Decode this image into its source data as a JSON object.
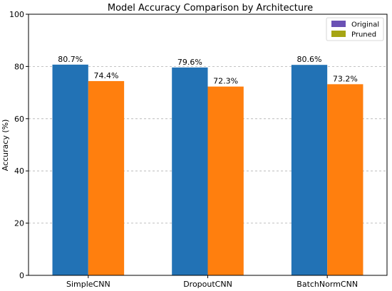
{
  "chart_data": {
    "type": "bar",
    "title": "Model Accuracy Comparison by Architecture",
    "xlabel": "",
    "ylabel": "Accuracy (%)",
    "ylim": [
      0,
      100
    ],
    "yticks": [
      0,
      20,
      40,
      60,
      80,
      100
    ],
    "grid": "y-dashed",
    "legend_position": "top-right",
    "categories": [
      "SimpleCNN",
      "DropoutCNN",
      "BatchNormCNN"
    ],
    "series": [
      {
        "name": "Original",
        "legend_color": "#6a51b5",
        "bar_color": "#2272b5",
        "values": [
          80.7,
          79.6,
          80.6
        ],
        "labels": [
          "80.7%",
          "79.6%",
          "80.6%"
        ]
      },
      {
        "name": "Pruned",
        "legend_color": "#a6a513",
        "bar_color": "#ff7f0e",
        "values": [
          74.4,
          72.3,
          73.2
        ],
        "labels": [
          "74.4%",
          "72.3%",
          "73.2%"
        ]
      }
    ]
  }
}
